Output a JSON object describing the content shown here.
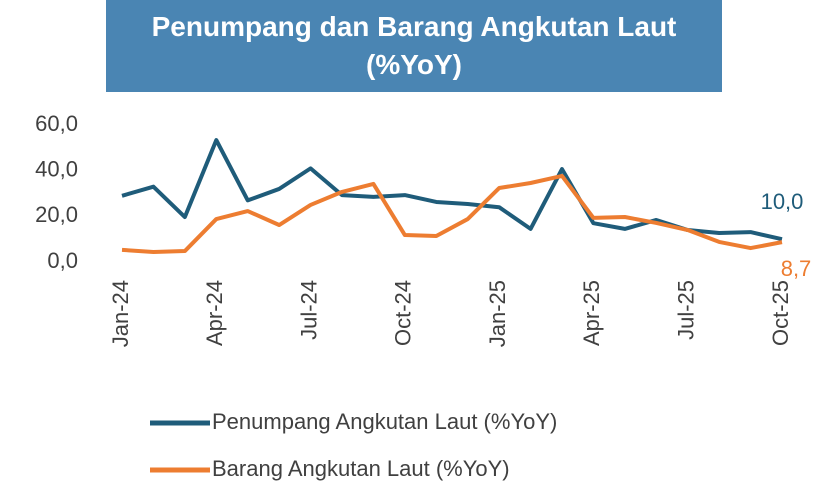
{
  "chart_data": {
    "type": "line",
    "title": "Penumpang dan Barang Angkutan Laut (%YoY)",
    "categories": [
      "Jan-24",
      null,
      null,
      "Apr-24",
      null,
      null,
      "Jul-24",
      null,
      null,
      "Oct-24",
      null,
      null,
      "Jan-25",
      null,
      null,
      "Apr-25",
      null,
      null,
      "Jul-25",
      null,
      null,
      "Oct-25"
    ],
    "series": [
      {
        "name": "Penumpang Angkutan Laut (%YoY)",
        "color": "#1f5c7a",
        "values": [
          29,
          33,
          19.7,
          53.4,
          27,
          32,
          41,
          29.3,
          28.5,
          29.3,
          26.3,
          25.4,
          24,
          14.5,
          40.7,
          17,
          14.5,
          18.4,
          14,
          12.7,
          13.1,
          10.0
        ],
        "value_labels": [
          null,
          null,
          null,
          null,
          null,
          null,
          null,
          null,
          null,
          null,
          null,
          null,
          null,
          null,
          null,
          null,
          null,
          null,
          null,
          null,
          null,
          "10,0"
        ]
      },
      {
        "name": "Barang Angkutan Laut (%YoY)",
        "color": "#ed7d31",
        "values": [
          5.3,
          4.4,
          4.8,
          18.8,
          22.3,
          16.2,
          25,
          30.7,
          34.2,
          11.8,
          11.4,
          18.8,
          32.4,
          34.6,
          37.7,
          19.3,
          19.7,
          17.1,
          14,
          8.8,
          6.1,
          8.7
        ],
        "value_labels": [
          null,
          null,
          null,
          null,
          null,
          null,
          null,
          null,
          null,
          null,
          null,
          null,
          null,
          null,
          null,
          null,
          null,
          null,
          null,
          null,
          null,
          "8,7"
        ]
      }
    ],
    "ylim": [
      0,
      60
    ],
    "yticks": [
      {
        "value": 0,
        "label": "0,0"
      },
      {
        "value": 20,
        "label": "20,0"
      },
      {
        "value": 40,
        "label": "40,0"
      },
      {
        "value": 60,
        "label": "60,0"
      }
    ],
    "grid": false,
    "legend": "bottom"
  }
}
